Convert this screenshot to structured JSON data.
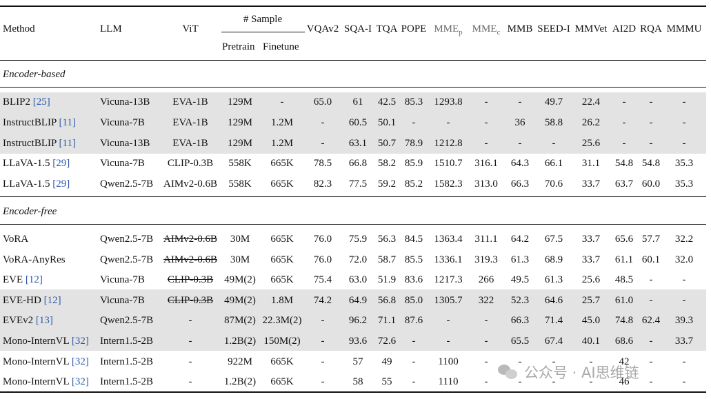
{
  "table": {
    "headers": {
      "method": "Method",
      "llm": "LLM",
      "vit": "ViT",
      "sample_group": "# Sample",
      "pretrain": "Pretrain",
      "finetune": "Finetune",
      "vqav2": "VQAv2",
      "sqai": "SQA-I",
      "tqa": "TQA",
      "pope": "POPE",
      "mmep_base": "MME",
      "mmep_sub": "p",
      "mmec_base": "MME",
      "mmec_sub": "c",
      "mmb": "MMB",
      "seedi": "SEED-I",
      "mmvet": "MMVet",
      "ai2d": "AI2D",
      "rqa": "RQA",
      "mmmu": "MMMU"
    },
    "section_encoder_based": "Encoder-based",
    "section_encoder_free": "Encoder-free",
    "rows": [
      {
        "method": "BLIP2",
        "ref": "[25]",
        "llm": "Vicuna-13B",
        "vit": "EVA-1B",
        "pretrain": "129M",
        "finetune": "-",
        "vqav2": "65.0",
        "sqai": "61",
        "tqa": "42.5",
        "pope": "85.3",
        "mmep": "1293.8",
        "mmec": "-",
        "mmb": "-",
        "seedi": "49.7",
        "mmvet": "22.4",
        "ai2d": "-",
        "rqa": "-",
        "mmmu": "-"
      },
      {
        "method": "InstructBLIP",
        "ref": "[11]",
        "llm": "Vicuna-7B",
        "vit": "EVA-1B",
        "pretrain": "129M",
        "finetune": "1.2M",
        "vqav2": "-",
        "sqai": "60.5",
        "tqa": "50.1",
        "pope": "-",
        "mmep": "-",
        "mmec": "-",
        "mmb": "36",
        "seedi": "58.8",
        "mmvet": "26.2",
        "ai2d": "-",
        "rqa": "-",
        "mmmu": "-"
      },
      {
        "method": "InstructBLIP",
        "ref": "[11]",
        "llm": "Vicuna-13B",
        "vit": "EVA-1B",
        "pretrain": "129M",
        "finetune": "1.2M",
        "vqav2": "-",
        "sqai": "63.1",
        "tqa": "50.7",
        "pope": "78.9",
        "mmep": "1212.8",
        "mmec": "-",
        "mmb": "-",
        "seedi": "-",
        "mmvet": "25.6",
        "ai2d": "-",
        "rqa": "-",
        "mmmu": "-"
      },
      {
        "method": "LLaVA-1.5",
        "ref": "[29]",
        "llm": "Vicuna-7B",
        "vit": "CLIP-0.3B",
        "pretrain": "558K",
        "finetune": "665K",
        "vqav2": "78.5",
        "sqai": "66.8",
        "tqa": "58.2",
        "pope": "85.9",
        "mmep": "1510.7",
        "mmec": "316.1",
        "mmb": "64.3",
        "seedi": "66.1",
        "mmvet": "31.1",
        "ai2d": "54.8",
        "rqa": "54.8",
        "mmmu": "35.3"
      },
      {
        "method": "LLaVA-1.5",
        "ref": "[29]",
        "llm": "Qwen2.5-7B",
        "vit": "AIMv2-0.6B",
        "pretrain": "558K",
        "finetune": "665K",
        "vqav2": "82.3",
        "sqai": "77.5",
        "tqa": "59.2",
        "pope": "85.2",
        "mmep": "1582.3",
        "mmec": "313.0",
        "mmb": "66.3",
        "seedi": "70.6",
        "mmvet": "33.7",
        "ai2d": "63.7",
        "rqa": "60.0",
        "mmmu": "35.3"
      },
      {
        "method": "VoRA",
        "ref": "",
        "llm": "Qwen2.5-7B",
        "vit": "AIMv2-0.6B",
        "pretrain": "30M",
        "finetune": "665K",
        "vqav2": "76.0",
        "sqai": "75.9",
        "tqa": "56.3",
        "pope": "84.5",
        "mmep": "1363.4",
        "mmec": "311.1",
        "mmb": "64.2",
        "seedi": "67.5",
        "mmvet": "33.7",
        "ai2d": "65.6",
        "rqa": "57.7",
        "mmmu": "32.2"
      },
      {
        "method": "VoRA-AnyRes",
        "ref": "",
        "llm": "Qwen2.5-7B",
        "vit": "AIMv2-0.6B",
        "pretrain": "30M",
        "finetune": "665K",
        "vqav2": "76.0",
        "sqai": "72.0",
        "tqa": "58.7",
        "pope": "85.5",
        "mmep": "1336.1",
        "mmec": "319.3",
        "mmb": "61.3",
        "seedi": "68.9",
        "mmvet": "33.7",
        "ai2d": "61.1",
        "rqa": "60.1",
        "mmmu": "32.0"
      },
      {
        "method": "EVE",
        "ref": "[12]",
        "llm": "Vicuna-7B",
        "vit": "CLIP-0.3B",
        "pretrain": "49M(2)",
        "finetune": "665K",
        "vqav2": "75.4",
        "sqai": "63.0",
        "tqa": "51.9",
        "pope": "83.6",
        "mmep": "1217.3",
        "mmec": "266",
        "mmb": "49.5",
        "seedi": "61.3",
        "mmvet": "25.6",
        "ai2d": "48.5",
        "rqa": "-",
        "mmmu": "-"
      },
      {
        "method": "EVE-HD",
        "ref": "[12]",
        "llm": "Vicuna-7B",
        "vit": "CLIP-0.3B",
        "pretrain": "49M(2)",
        "finetune": "1.8M",
        "vqav2": "74.2",
        "sqai": "64.9",
        "tqa": "56.8",
        "pope": "85.0",
        "mmep": "1305.7",
        "mmec": "322",
        "mmb": "52.3",
        "seedi": "64.6",
        "mmvet": "25.7",
        "ai2d": "61.0",
        "rqa": "-",
        "mmmu": "-"
      },
      {
        "method": "EVEv2",
        "ref": "[13]",
        "llm": "Qwen2.5-7B",
        "vit": "-",
        "pretrain": "87M(2)",
        "finetune": "22.3M(2)",
        "vqav2": "-",
        "sqai": "96.2",
        "tqa": "71.1",
        "pope": "87.6",
        "mmep": "-",
        "mmec": "-",
        "mmb": "66.3",
        "seedi": "71.4",
        "mmvet": "45.0",
        "ai2d": "74.8",
        "rqa": "62.4",
        "mmmu": "39.3"
      },
      {
        "method": "Mono-InternVL",
        "ref": "[32]",
        "llm": "Intern1.5-2B",
        "vit": "-",
        "pretrain": "1.2B(2)",
        "finetune": "150M(2)",
        "vqav2": "-",
        "sqai": "93.6",
        "tqa": "72.6",
        "pope": "-",
        "mmep": "-",
        "mmec": "-",
        "mmb": "65.5",
        "seedi": "67.4",
        "mmvet": "40.1",
        "ai2d": "68.6",
        "rqa": "-",
        "mmmu": "33.7"
      },
      {
        "method": "Mono-InternVL",
        "ref": "[32]",
        "llm": "Intern1.5-2B",
        "vit": "-",
        "pretrain": "922M",
        "finetune": "665K",
        "vqav2": "-",
        "sqai": "57",
        "tqa": "49",
        "pope": "-",
        "mmep": "1100",
        "mmec": "-",
        "mmb": "-",
        "seedi": "-",
        "mmvet": "-",
        "ai2d": "42",
        "rqa": "-",
        "mmmu": "-"
      },
      {
        "method": "Mono-InternVL",
        "ref": "[32]",
        "llm": "Intern1.5-2B",
        "vit": "-",
        "pretrain": "1.2B(2)",
        "finetune": "665K",
        "vqav2": "-",
        "sqai": "58",
        "tqa": "55",
        "pope": "-",
        "mmep": "1110",
        "mmec": "-",
        "mmb": "-",
        "seedi": "-",
        "mmvet": "-",
        "ai2d": "46",
        "rqa": "-",
        "mmmu": "-"
      }
    ]
  },
  "watermark": {
    "text": "公众号 · AI思维链",
    "icon": "wechat-icon"
  }
}
